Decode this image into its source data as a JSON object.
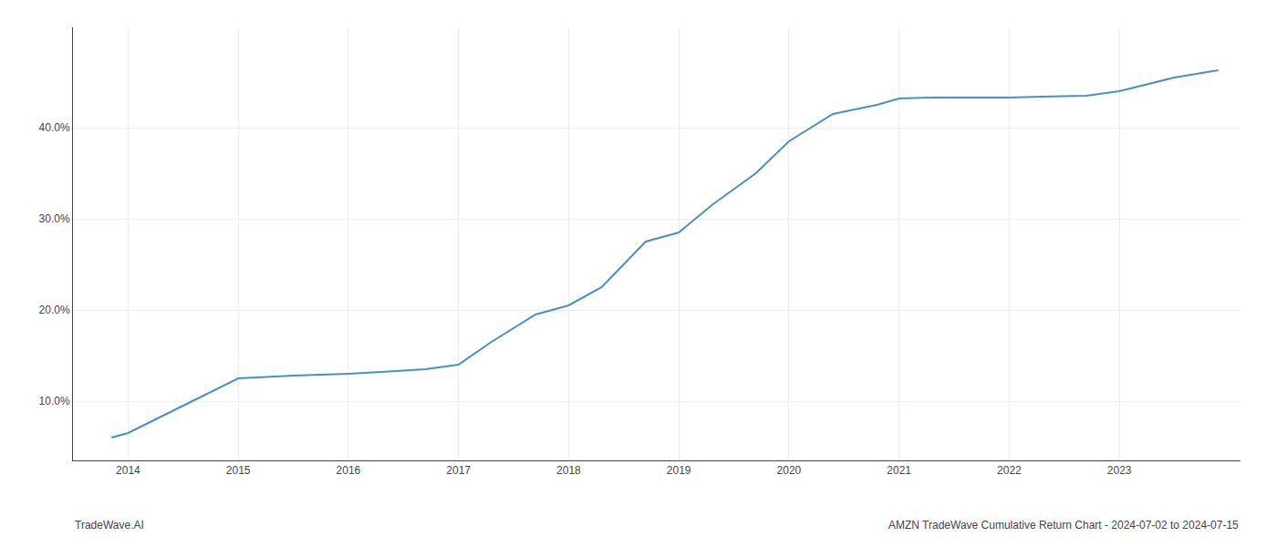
{
  "chart_data": {
    "type": "line",
    "x": [
      2013.85,
      2014.0,
      2014.5,
      2015.0,
      2015.5,
      2016.0,
      2016.3,
      2016.7,
      2017.0,
      2017.3,
      2017.7,
      2018.0,
      2018.3,
      2018.7,
      2019.0,
      2019.3,
      2019.7,
      2020.0,
      2020.4,
      2020.8,
      2021.0,
      2021.3,
      2021.7,
      2022.0,
      2022.3,
      2022.7,
      2023.0,
      2023.5,
      2023.9
    ],
    "values": [
      6.0,
      6.5,
      9.5,
      12.5,
      12.8,
      13.0,
      13.2,
      13.5,
      14.0,
      16.5,
      19.5,
      20.5,
      22.5,
      27.5,
      28.5,
      31.5,
      35.0,
      38.5,
      41.5,
      42.5,
      43.2,
      43.3,
      43.3,
      43.3,
      43.4,
      43.5,
      44.0,
      45.5,
      46.3
    ],
    "color": "#4a90c4",
    "xlim": [
      2013.5,
      2024.1
    ],
    "xticks": [
      2014,
      2015,
      2016,
      2017,
      2018,
      2019,
      2020,
      2021,
      2022,
      2023
    ],
    "ylim": [
      3.5,
      51.0
    ],
    "yticks": [
      {
        "value": 10.0,
        "label": "10.0%"
      },
      {
        "value": 20.0,
        "label": "20.0%"
      },
      {
        "value": 30.0,
        "label": "30.0%"
      },
      {
        "value": 40.0,
        "label": "40.0%"
      }
    ],
    "grid": true,
    "annotations": [
      "TradeWave.AI",
      "AMZN TradeWave Cumulative Return Chart - 2024-07-02 to 2024-07-15"
    ]
  }
}
